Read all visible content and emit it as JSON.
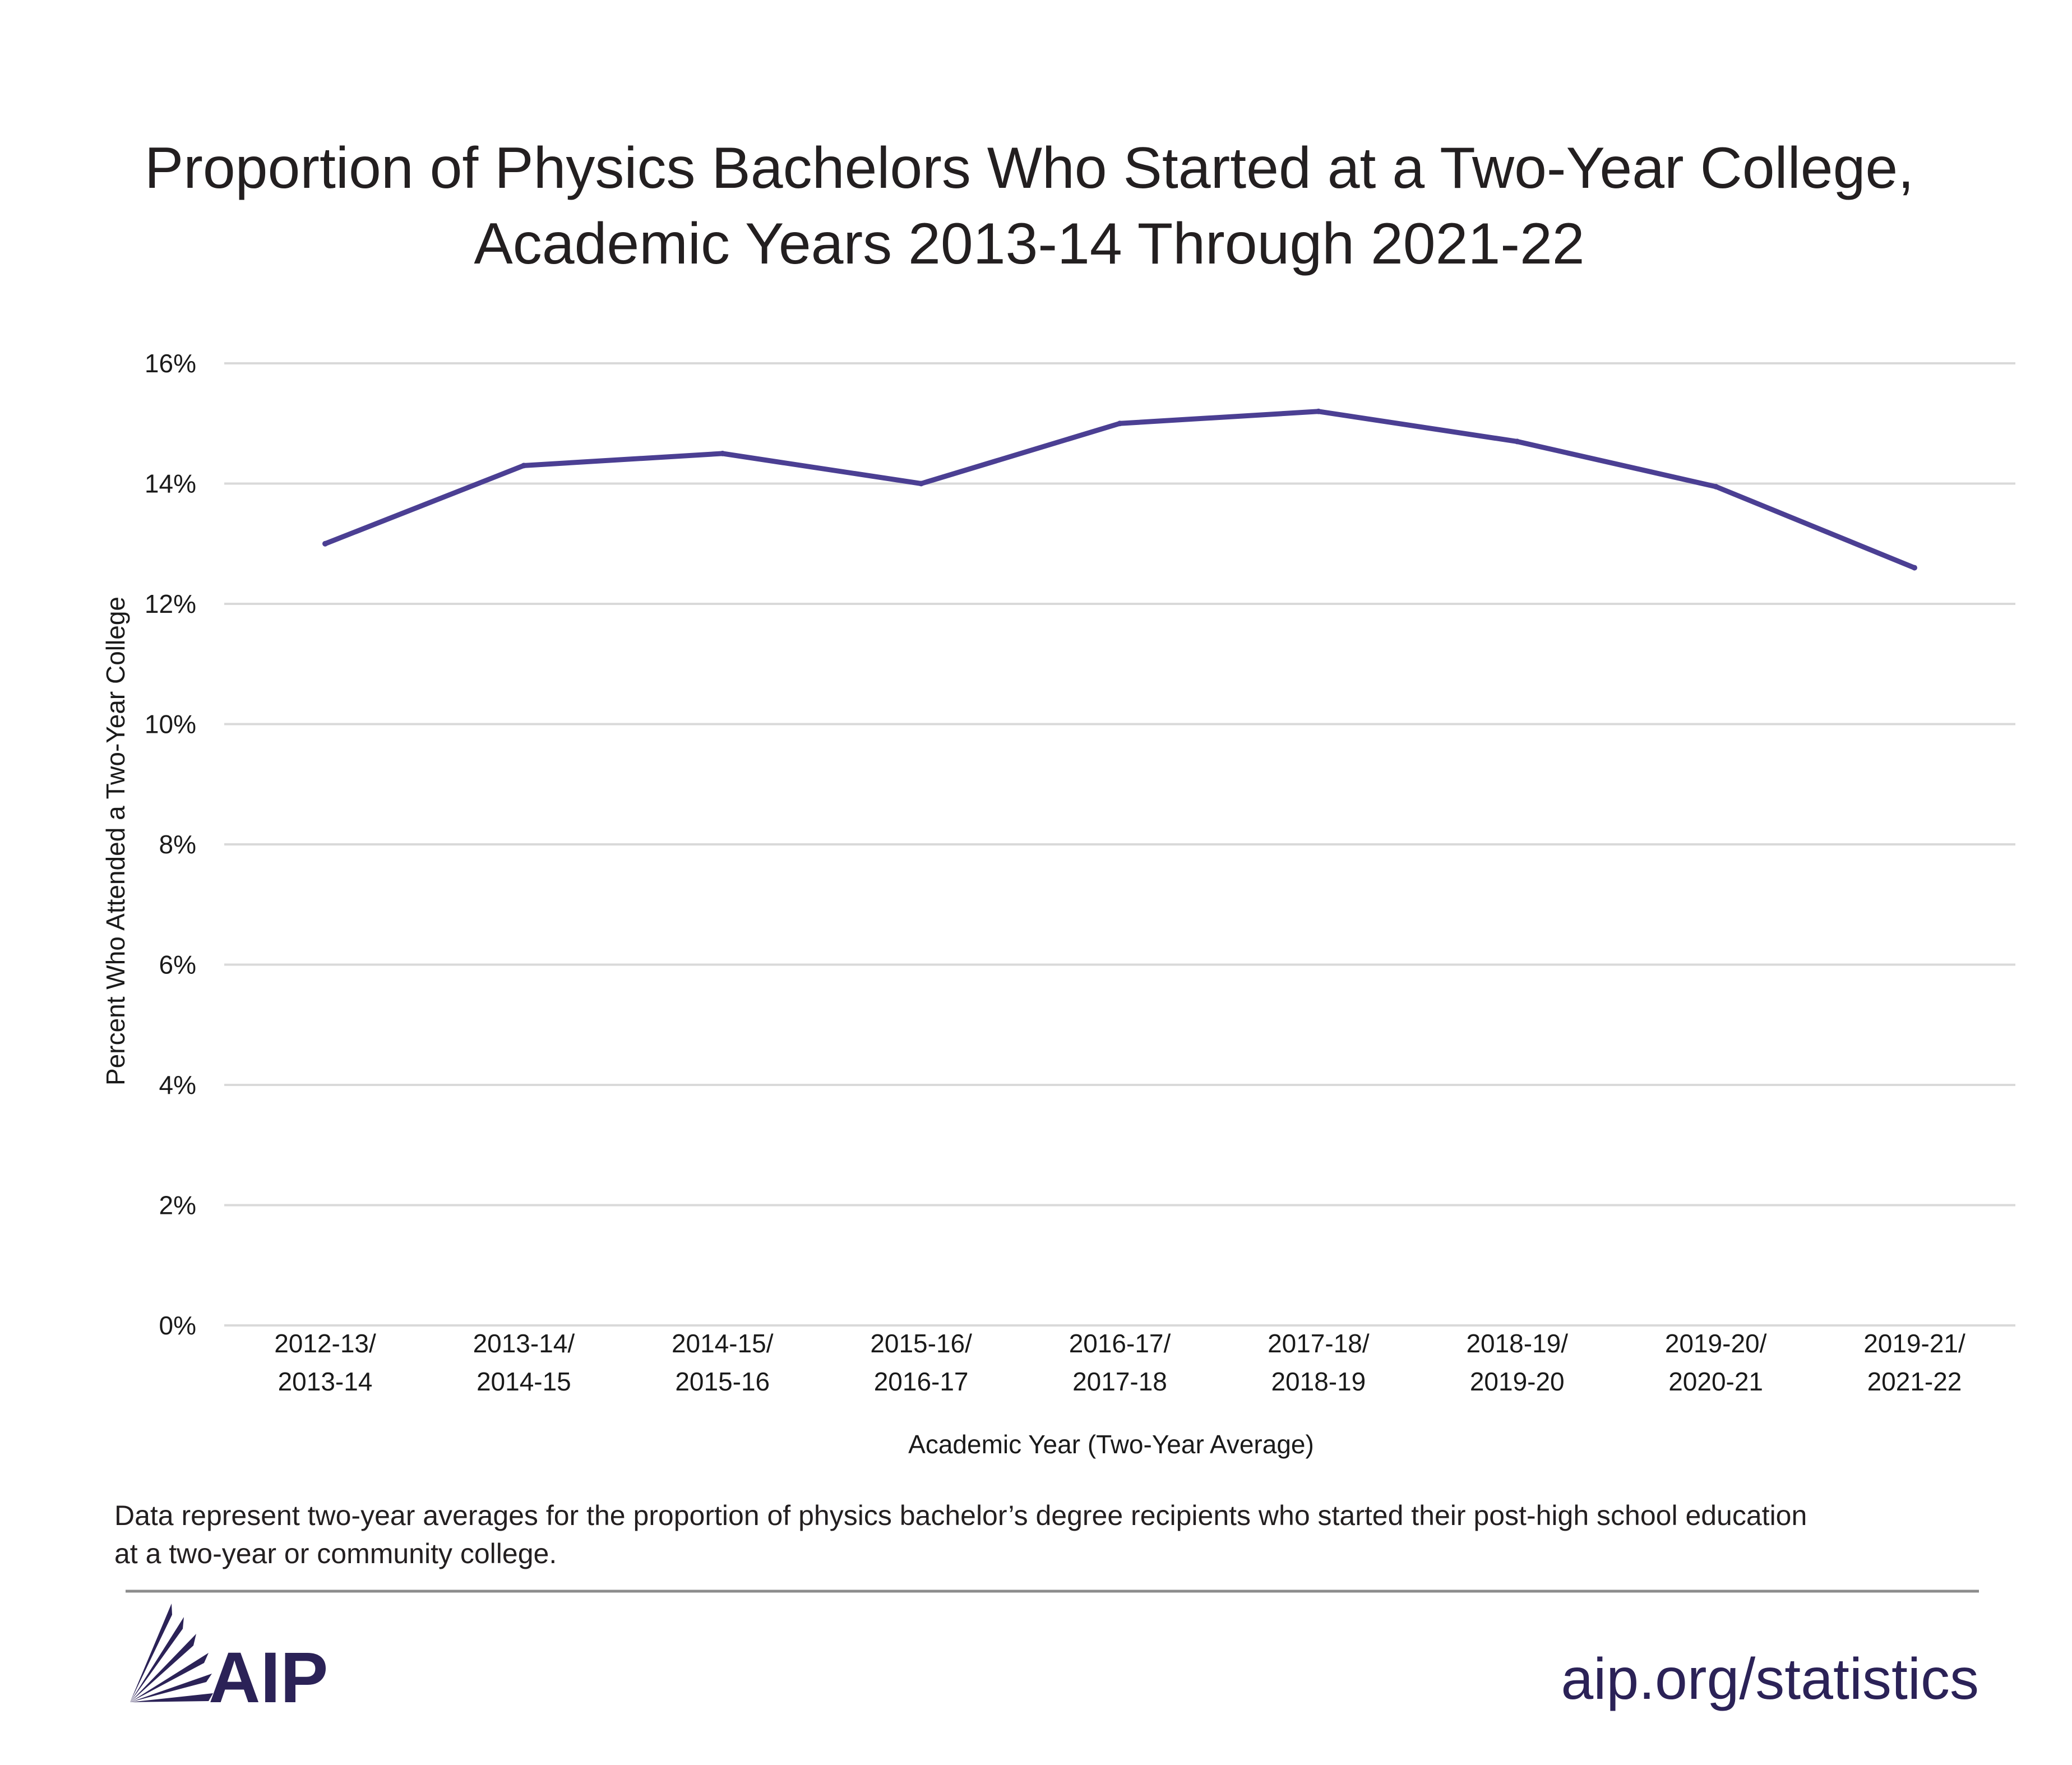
{
  "colors": {
    "line": "#4b3f93",
    "grid": "#d9d9d9",
    "brand": "#2b2257",
    "divider": "#8c8c8c"
  },
  "chart_data": {
    "type": "line",
    "title_lines": [
      "Proportion of Physics Bachelors Who Started at a Two-Year College,",
      "Academic Years 2013-14 Through 2021-22"
    ],
    "xlabel": "Academic Year (Two-Year Average)",
    "ylabel": "Percent Who Attended a Two-Year College",
    "ylim": [
      0,
      16
    ],
    "yticks": [
      "0%",
      "2%",
      "4%",
      "6%",
      "8%",
      "10%",
      "12%",
      "14%",
      "16%"
    ],
    "grid": true,
    "legend": "none",
    "categories": [
      [
        "2012-13/",
        "2013-14"
      ],
      [
        "2013-14/",
        "2014-15"
      ],
      [
        "2014-15/",
        "2015-16"
      ],
      [
        "2015-16/",
        "2016-17"
      ],
      [
        "2016-17/",
        "2017-18"
      ],
      [
        "2017-18/",
        "2018-19"
      ],
      [
        "2018-19/",
        "2019-20"
      ],
      [
        "2019-20/",
        "2020-21"
      ],
      [
        "2019-21/",
        "2021-22"
      ]
    ],
    "values": [
      13.0,
      14.3,
      14.5,
      14.0,
      15.0,
      15.2,
      14.7,
      13.95,
      12.6
    ]
  },
  "footnote_lines": [
    "Data represent two-year averages for the proportion of physics bachelor’s degree recipients who started their post-high school education",
    "at a two-year or community college."
  ],
  "logo": {
    "text": "AIP"
  },
  "website": "aip.org/statistics"
}
